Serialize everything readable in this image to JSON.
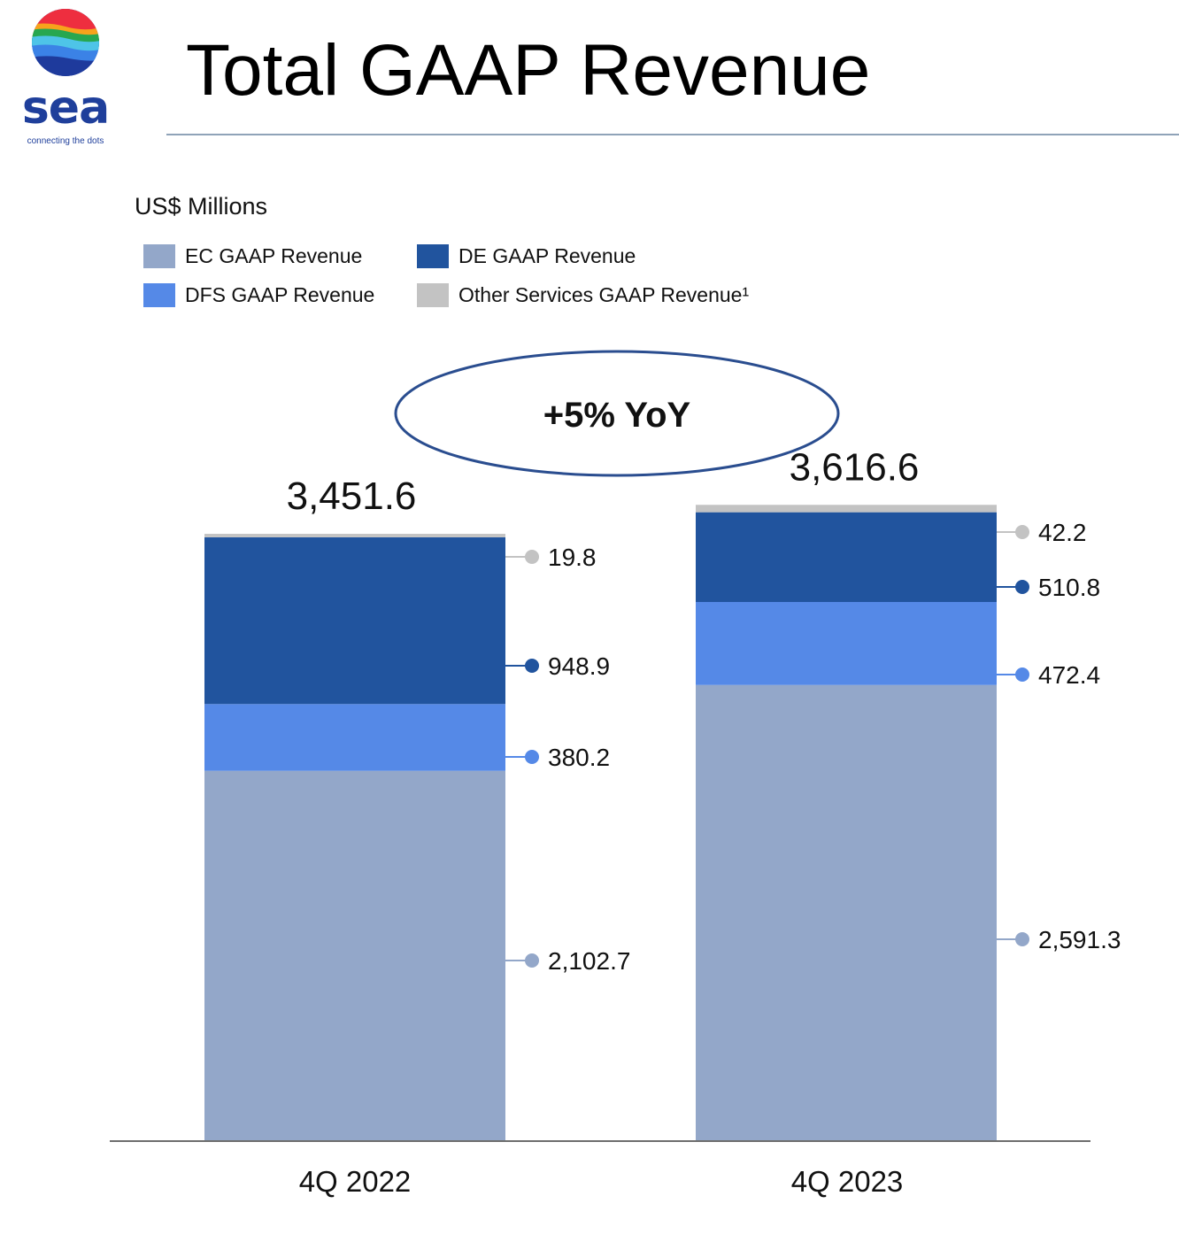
{
  "brand": {
    "name": "sea",
    "tagline": "connecting the dots"
  },
  "page": {
    "title": "Total GAAP Revenue",
    "unit": "US$ Millions"
  },
  "colors": {
    "ec": "#93a7c9",
    "dfs": "#5589e7",
    "de": "#21549e",
    "other": "#c3c3c3",
    "axis": "#6e6e6e",
    "ellipse": "#2a4d8f"
  },
  "legend": [
    {
      "label": "EC GAAP Revenue",
      "color": "#93a7c9"
    },
    {
      "label": "DE GAAP Revenue",
      "color": "#21549e"
    },
    {
      "label": "DFS GAAP Revenue",
      "color": "#5589e7"
    },
    {
      "label": "Other Services GAAP Revenue¹",
      "color": "#c3c3c3"
    }
  ],
  "chart_data": {
    "type": "bar",
    "stacked": true,
    "title": "Total GAAP Revenue",
    "ylabel": "US$ Millions",
    "categories": [
      "4Q 2022",
      "4Q 2023"
    ],
    "series": [
      {
        "name": "EC GAAP Revenue",
        "values": [
          2102.7,
          2591.3
        ],
        "labels": [
          "2,102.7",
          "2,591.3"
        ],
        "color": "#93a7c9"
      },
      {
        "name": "DFS GAAP Revenue",
        "values": [
          380.2,
          472.4
        ],
        "labels": [
          "380.2",
          "472.4"
        ],
        "color": "#5589e7"
      },
      {
        "name": "DE GAAP Revenue",
        "values": [
          948.9,
          510.8
        ],
        "labels": [
          "948.9",
          "510.8"
        ],
        "color": "#21549e"
      },
      {
        "name": "Other Services GAAP Revenue¹",
        "values": [
          19.8,
          42.2
        ],
        "labels": [
          "19.8",
          "42.2"
        ],
        "color": "#c3c3c3"
      }
    ],
    "totals": [
      3451.6,
      3616.6
    ],
    "total_labels": [
      "3,451.6",
      "3,616.6"
    ],
    "annotation": "+5% YoY",
    "grid": false,
    "legend_position": "top-left"
  }
}
